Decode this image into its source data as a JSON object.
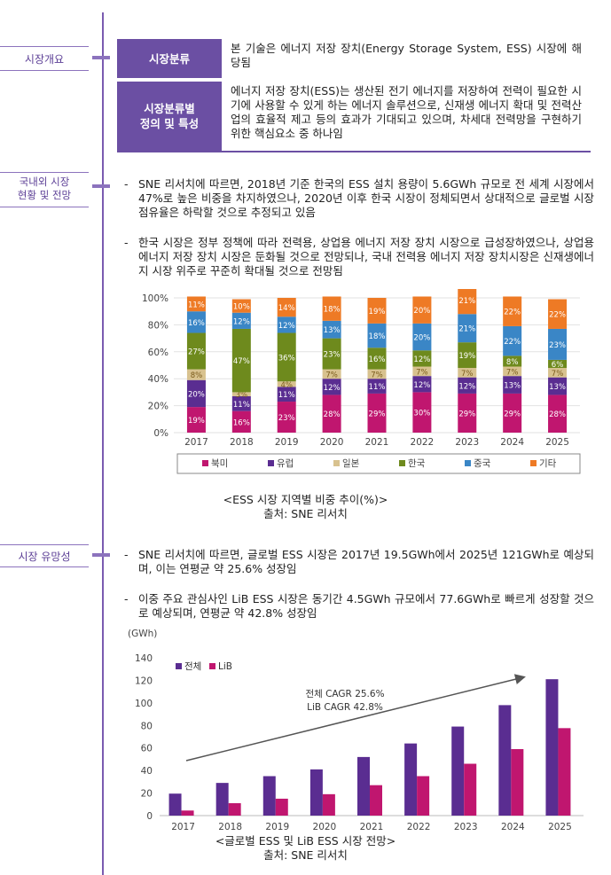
{
  "sections": {
    "overview": "시장개요",
    "status": "국내외 시장\n현황 및 전망",
    "status_l1": "국내외 시장",
    "status_l2": "현황 및 전망",
    "promise": "시장 유망성"
  },
  "classification": {
    "head1": "시장분류",
    "body1": "본 기술은 에너지 저장 장치(Energy Storage System, ESS) 시장에 해당됨",
    "head2_l1": "시장분류별",
    "head2_l2": "정의 및 특성",
    "body2": "에너지 저장 장치(ESS)는 생산된 전기 에너지를 저장하여 전력이 필요한 시기에 사용할 수 있게 하는 에너지 솔루션으로, 신재생 에너지 확대 및 전력산업의 효율적 제고 등의 효과가 기대되고 있으며, 차세대 전력망을 구현하기 위한 핵심요소 중 하나임"
  },
  "bullets": {
    "b1": "SNE 리서치에 따르면, 2018년 기준 한국의 ESS 설치 용량이 5.6GWh 규모로 전 세계 시장에서 47%로 높은 비중을 차지하였으나, 2020년 이후 한국 시장이 정체되면서 상대적으로 글로벌 시장 점유율은 하락할 것으로 추정되고 있음",
    "b2": "한국 시장은 정부 정책에 따라 전력용, 상업용 에너지 저장 장치 시장으로 급성장하였으나, 상업용 에너지 저장 장치 시장은 둔화될 것으로 전망되나, 국내 전력용 에너지 저장 장치시장은 신재생에너지 시장 위주로 꾸준히 확대될 것으로 전망됨",
    "b3": "SNE 리서치에 따르면, 글로벌 ESS 시장은 2017년 19.5GWh에서 2025년 121GWh로 예상되며, 이는 연평균 약 25.6% 성장임",
    "b4": "이중 주요 관심사인 LiB ESS 시장은 동기간 4.5GWh 규모에서 77.6GWh로 빠르게 성장할 것으로 예상되며, 연평균 약 42.8% 성장임",
    "dash": "-"
  },
  "captions": {
    "c1_l1": "<ESS 시장 지역별 비중 추이(%)>",
    "c1_l2": "출처: SNE 리서치",
    "c2_l1": "<글로벌 ESS 및 LiB ESS 시장 전망>",
    "c2_l2": "출처: SNE 리서치"
  },
  "chart_data": [
    {
      "type": "bar",
      "stacked": true,
      "categories": [
        "2017",
        "2018",
        "2019",
        "2020",
        "2021",
        "2022",
        "2023",
        "2024",
        "2025"
      ],
      "yticks": [
        "0%",
        "20%",
        "40%",
        "60%",
        "80%",
        "100%"
      ],
      "ylim": [
        0,
        100
      ],
      "legend_position": "bottom",
      "series": [
        {
          "name": "북미",
          "color": "#c0166f",
          "values": [
            19,
            16,
            23,
            28,
            29,
            30,
            29,
            29,
            28
          ],
          "labels": [
            "19%",
            "16%",
            "23%",
            "28%",
            "29%",
            "30%",
            "29%",
            "29%",
            "28%"
          ]
        },
        {
          "name": "유럽",
          "color": "#5a2d91",
          "values": [
            20,
            11,
            11,
            12,
            11,
            12,
            12,
            13,
            13
          ],
          "labels": [
            "20%",
            "11%",
            "11%",
            "12%",
            "11%",
            "12%",
            "12%",
            "13%",
            "13%"
          ]
        },
        {
          "name": "일본",
          "color": "#d8c28f",
          "values": [
            8,
            3,
            4,
            7,
            7,
            7,
            7,
            7,
            7
          ],
          "labels": [
            "8%",
            "3%",
            "4%",
            "7%",
            "7%",
            "7%",
            "7%",
            "7%",
            "7%"
          ]
        },
        {
          "name": "한국",
          "color": "#6e8a1d",
          "values": [
            27,
            47,
            36,
            23,
            16,
            12,
            19,
            8,
            6
          ],
          "labels": [
            "27%",
            "47%",
            "36%",
            "23%",
            "16%",
            "12%",
            "19%",
            "8%",
            "6%"
          ]
        },
        {
          "name": "중국",
          "color": "#3a86c6",
          "values": [
            16,
            12,
            12,
            13,
            18,
            20,
            21,
            22,
            23
          ],
          "labels": [
            "16%",
            "12%",
            "12%",
            "13%",
            "18%",
            "20%",
            "21%",
            "22%",
            "23%"
          ]
        },
        {
          "name": "기타",
          "color": "#ee7a25",
          "values": [
            11,
            10,
            14,
            18,
            19,
            20,
            21,
            22,
            22
          ],
          "labels": [
            "11%",
            "10%",
            "14%",
            "18%",
            "19%",
            "20%",
            "21%",
            "22%",
            "22%"
          ]
        }
      ]
    },
    {
      "type": "bar",
      "unit": "(GWh)",
      "categories": [
        "2017",
        "2018",
        "2019",
        "2020",
        "2021",
        "2022",
        "2023",
        "2024",
        "2025"
      ],
      "yticks": [
        "0",
        "20",
        "40",
        "60",
        "80",
        "100",
        "120",
        "140"
      ],
      "ylim": [
        0,
        140
      ],
      "legend_position": "top-left",
      "annotation_l1": "전체 CAGR 25.6%",
      "annotation_l2": "LiB CAGR 42.8%",
      "series": [
        {
          "name": "전체",
          "color": "#5a2d91",
          "values": [
            19.5,
            29,
            35,
            41,
            52,
            64,
            79,
            98,
            121
          ]
        },
        {
          "name": "LiB",
          "color": "#c0166f",
          "values": [
            4.5,
            11,
            15,
            19,
            27,
            35,
            46,
            59,
            77.6
          ]
        }
      ]
    }
  ]
}
